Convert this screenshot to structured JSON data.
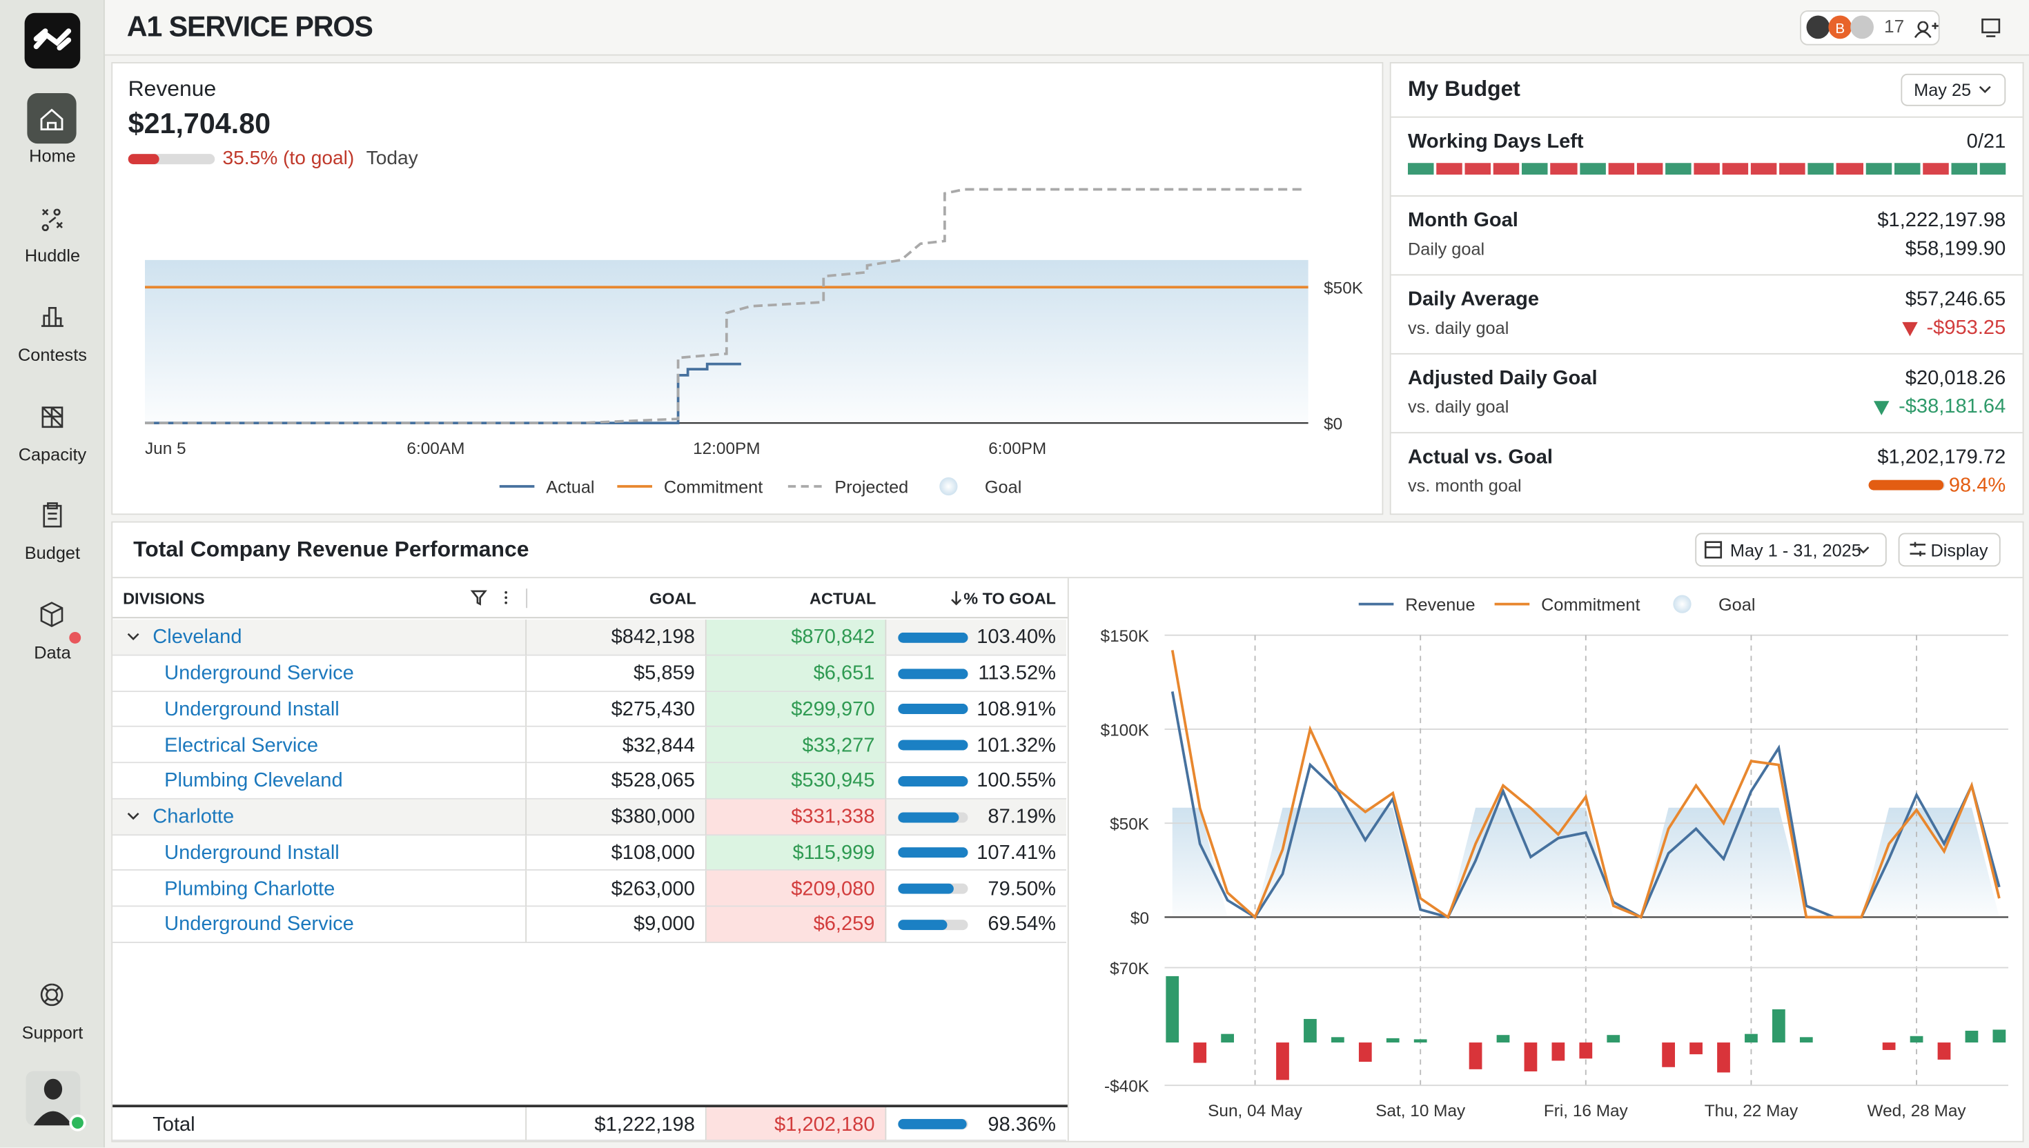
{
  "header": {
    "title": "A1 SERVICE PROS",
    "avatar_letter": "B",
    "member_count": 17
  },
  "sidebar": {
    "items": [
      "Home",
      "Huddle",
      "Contests",
      "Capacity",
      "Budget",
      "Data"
    ],
    "support": "Support"
  },
  "revenue": {
    "title": "Revenue",
    "amount": "$21,704.80",
    "progress_label": "35.5% (to goal)",
    "period": "Today",
    "chart": {
      "type": "line",
      "xlim": [
        0,
        24
      ],
      "xticks": [
        {
          "value": 0,
          "label": "Jun 5"
        },
        {
          "value": 6,
          "label": "6:00AM"
        },
        {
          "value": 12,
          "label": "12:00PM"
        },
        {
          "value": 18,
          "label": "6:00PM"
        }
      ],
      "ylim": [
        0,
        90000
      ],
      "yticks": [
        {
          "value": 0,
          "label": "$0"
        },
        {
          "value": 50000,
          "label": "$50K"
        }
      ],
      "grid": false,
      "series": [
        {
          "name": "Actual",
          "color": "#46719e",
          "style": "solid",
          "x": [
            0,
            11,
            11,
            11.2,
            11.2,
            11.6,
            11.6,
            12.3
          ],
          "values": [
            0,
            0,
            17600,
            17600,
            19800,
            19800,
            21700,
            21700
          ]
        },
        {
          "name": "Commitment",
          "color": "#e8872e",
          "style": "solid",
          "x": [
            0,
            24
          ],
          "values": [
            50000,
            50000
          ]
        },
        {
          "name": "Projected",
          "color": "#a9a9a9",
          "style": "dashed",
          "x": [
            0,
            9,
            11,
            11,
            12,
            12,
            12.5,
            14,
            14,
            14.9,
            14.9,
            15.6,
            16,
            16.5,
            16.5,
            16.9,
            23.9
          ],
          "values": [
            0,
            0,
            1500,
            24000,
            25500,
            40500,
            43000,
            44500,
            54000,
            55500,
            58000,
            60000,
            66000,
            67000,
            84500,
            86000,
            86000
          ]
        },
        {
          "name": "Goal",
          "color": "#cfe2ef",
          "style": "area",
          "x": [
            0,
            24
          ],
          "values": [
            60000,
            60000
          ]
        }
      ]
    }
  },
  "budget": {
    "title": "My Budget",
    "period": "May 25",
    "working_days_label": "Working Days Left",
    "working_days": "0/21",
    "segment_colors": [
      "#3a9a74",
      "#d9434a",
      "#d9434a",
      "#d9434a",
      "#3a9a74",
      "#d9434a",
      "#3a9a74",
      "#d9434a",
      "#d9434a",
      "#3a9a74",
      "#d9434a",
      "#d9434a",
      "#d9434a",
      "#d9434a",
      "#3a9a74",
      "#d9434a",
      "#3a9a74",
      "#3a9a74",
      "#d9434a",
      "#3a9a74",
      "#3a9a74"
    ],
    "rows": [
      {
        "label": "Month Goal",
        "value": "$1,222,197.98",
        "sub": "Daily goal",
        "sub_value": "$58,199.90",
        "sub_color": "#1f2328"
      },
      {
        "label": "Daily Average",
        "value": "$57,246.65",
        "sub": "vs. daily goal",
        "sub_value": "-$953.25",
        "sub_color": "#d23c3c",
        "marker": "triangle-down"
      },
      {
        "label": "Adjusted Daily Goal",
        "value": "$20,018.26",
        "sub": "vs. daily goal",
        "sub_value": "-$38,181.64",
        "sub_color": "#2f9a6a",
        "marker": "triangle-down"
      },
      {
        "label": "Actual vs. Goal",
        "value": "$1,202,179.72",
        "sub": "vs. month goal",
        "sub_value": "98.4%",
        "sub_color": "#e35d12",
        "marker": "bar"
      }
    ]
  },
  "performance": {
    "title": "Total Company Revenue Performance",
    "date_range": "May 1 - 31, 2025",
    "display_button": "Display",
    "table": {
      "columns": [
        "DIVISIONS",
        "GOAL",
        "ACTUAL",
        "% TO GOAL"
      ],
      "rows": [
        {
          "level": 0,
          "cells": [
            "Cleveland",
            "$842,198",
            "$870,842",
            "103.40%"
          ]
        },
        {
          "level": 1,
          "cells": [
            "Underground Service",
            "$5,859",
            "$6,651",
            "113.52%"
          ]
        },
        {
          "level": 1,
          "cells": [
            "Underground Install",
            "$275,430",
            "$299,970",
            "108.91%"
          ]
        },
        {
          "level": 1,
          "cells": [
            "Electrical Service",
            "$32,844",
            "$33,277",
            "101.32%"
          ]
        },
        {
          "level": 1,
          "cells": [
            "Plumbing Cleveland",
            "$528,065",
            "$530,945",
            "100.55%"
          ]
        },
        {
          "level": 0,
          "cells": [
            "Charlotte",
            "$380,000",
            "$331,338",
            "87.19%"
          ]
        },
        {
          "level": 1,
          "cells": [
            "Underground Install",
            "$108,000",
            "$115,999",
            "107.41%"
          ]
        },
        {
          "level": 1,
          "cells": [
            "Plumbing Charlotte",
            "$263,000",
            "$209,080",
            "79.50%"
          ]
        },
        {
          "level": 1,
          "cells": [
            "Underground Service",
            "$9,000",
            "$6,259",
            "69.54%"
          ]
        }
      ],
      "total": [
        "Total",
        "$1,222,198",
        "$1,202,180",
        "98.36%"
      ]
    },
    "charts": [
      {
        "type": "line",
        "categories": [
          null,
          null,
          null,
          "Sun, 04 May",
          null,
          null,
          null,
          null,
          null,
          "Sat, 10 May",
          null,
          null,
          null,
          null,
          null,
          "Fri, 16 May",
          null,
          null,
          null,
          null,
          null,
          "Thu, 22 May",
          null,
          null,
          null,
          null,
          null,
          "Wed, 28 May",
          null,
          null,
          null
        ],
        "ylim": [
          0,
          150000
        ],
        "yticks": [
          {
            "value": 0,
            "label": "$0"
          },
          {
            "value": 50000,
            "label": "$50K"
          },
          {
            "value": 100000,
            "label": "$100K"
          },
          {
            "value": 150000,
            "label": "$150K"
          }
        ],
        "grid": true,
        "series": [
          {
            "name": "Revenue",
            "color": "#46719e",
            "style": "solid",
            "values": [
              120000,
              39000,
              9000,
              0,
              23000,
              81000,
              67000,
              41000,
              63000,
              4000,
              0,
              30000,
              67000,
              32000,
              42000,
              45000,
              8000,
              0,
              34000,
              47000,
              31000,
              67000,
              90000,
              6000,
              0,
              0,
              31000,
              65000,
              39000,
              70000,
              16000
            ]
          },
          {
            "name": "Commitment",
            "color": "#e8872e",
            "style": "solid",
            "values": [
              142000,
              58000,
              13000,
              0,
              36000,
              100000,
              68000,
              56000,
              66000,
              10000,
              0,
              39000,
              70000,
              58000,
              44000,
              64000,
              6000,
              0,
              47000,
              70000,
              50000,
              83000,
              81000,
              0,
              0,
              0,
              39000,
              57000,
              35000,
              70000,
              10000
            ]
          },
          {
            "name": "Goal",
            "color": "#cfe2ef",
            "style": "area",
            "values": [
              58200,
              58200,
              0,
              0,
              58200,
              58200,
              58200,
              58200,
              58200,
              0,
              0,
              58200,
              58200,
              58200,
              58200,
              58200,
              0,
              0,
              58200,
              58200,
              58200,
              58200,
              58200,
              0,
              0,
              0,
              58200,
              58200,
              58200,
              58200,
              0
            ]
          }
        ]
      },
      {
        "type": "bar",
        "ylim": [
          -40000,
          70000
        ],
        "yticks": [
          {
            "value": 70000,
            "label": "$70K"
          },
          {
            "value": -40000,
            "label": "-$40K"
          }
        ],
        "positive_color": "#2f9a6a",
        "negative_color": "#d9343a",
        "values": [
          62000,
          -19000,
          8000,
          0,
          -35000,
          22000,
          5000,
          -18000,
          4000,
          3000,
          0,
          -25000,
          7000,
          -27000,
          -17000,
          -15000,
          7000,
          0,
          -23000,
          -11000,
          -28000,
          8000,
          31000,
          5000,
          0,
          0,
          -7000,
          6000,
          -16000,
          11000,
          12000
        ]
      }
    ]
  }
}
